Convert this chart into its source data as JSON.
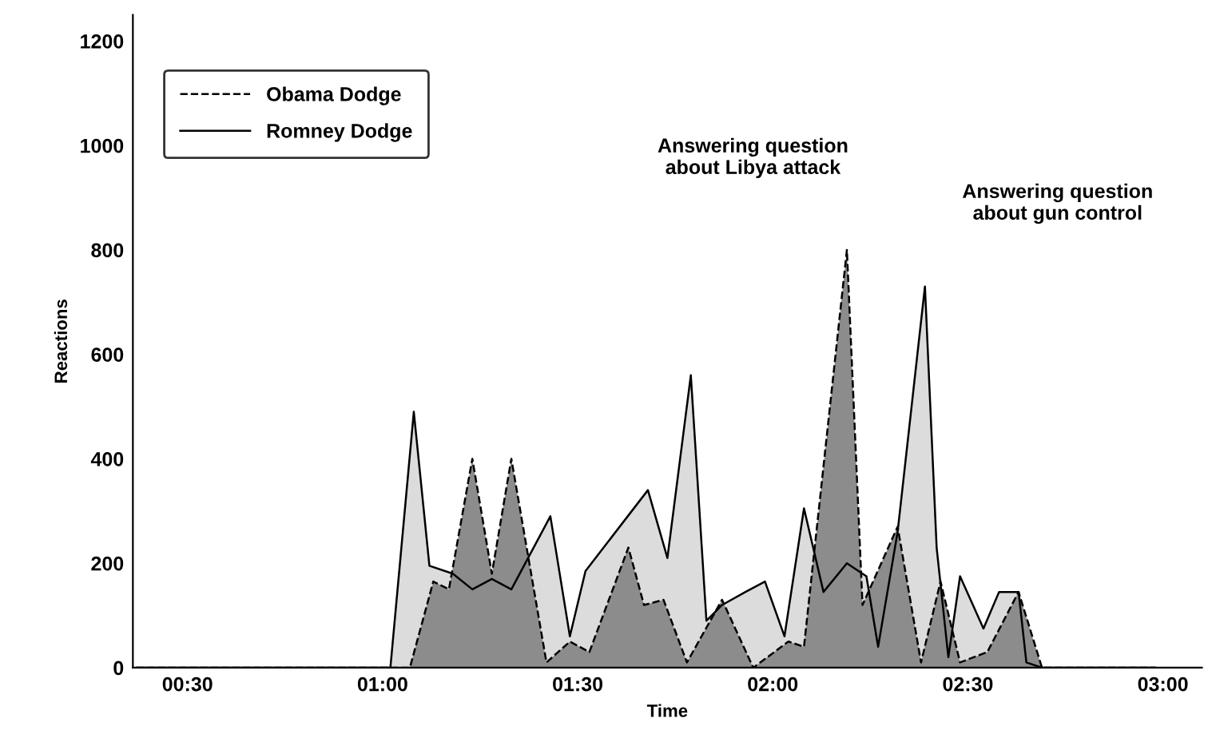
{
  "chart_data": {
    "type": "area",
    "xlabel": "Time",
    "ylabel": "Reactions",
    "xlim": [
      0.36,
      3.1
    ],
    "ylim": [
      0,
      1250
    ],
    "xticks": [
      {
        "value": 0.5,
        "label": "00:30"
      },
      {
        "value": 1.0,
        "label": "01:00"
      },
      {
        "value": 1.5,
        "label": "01:30"
      },
      {
        "value": 2.0,
        "label": "02:00"
      },
      {
        "value": 2.5,
        "label": "02:30"
      },
      {
        "value": 3.0,
        "label": "03:00"
      }
    ],
    "yticks": [
      0,
      200,
      400,
      600,
      800,
      1000,
      1200
    ],
    "grid": false,
    "legend": "top left",
    "series": [
      {
        "name": "Romney Dodge",
        "color": "#dcdcdc",
        "line_style": "solid",
        "x": [
          0.37,
          1.02,
          1.08,
          1.12,
          1.18,
          1.23,
          1.28,
          1.33,
          1.43,
          1.48,
          1.52,
          1.68,
          1.73,
          1.79,
          1.83,
          1.87,
          1.93,
          1.98,
          2.03,
          2.08,
          2.13,
          2.19,
          2.24,
          2.27,
          2.32,
          2.39,
          2.42,
          2.45,
          2.48,
          2.54,
          2.58,
          2.63,
          2.65,
          2.69,
          2.98
        ],
        "values": [
          0,
          0,
          490,
          195,
          180,
          150,
          170,
          150,
          290,
          60,
          185,
          340,
          210,
          560,
          90,
          120,
          145,
          165,
          60,
          305,
          145,
          200,
          175,
          40,
          260,
          730,
          230,
          20,
          175,
          75,
          145,
          145,
          10,
          0,
          0
        ]
      },
      {
        "name": "Obama Dodge",
        "color": "#8c8c8c",
        "line_style": "dashed",
        "x": [
          0.37,
          1.07,
          1.13,
          1.17,
          1.23,
          1.28,
          1.33,
          1.42,
          1.48,
          1.53,
          1.63,
          1.67,
          1.72,
          1.78,
          1.87,
          1.95,
          2.04,
          2.08,
          2.19,
          2.23,
          2.32,
          2.38,
          2.43,
          2.48,
          2.55,
          2.63,
          2.69,
          2.98
        ],
        "values": [
          0,
          0,
          165,
          150,
          400,
          180,
          400,
          10,
          50,
          30,
          230,
          120,
          130,
          10,
          130,
          0,
          50,
          40,
          800,
          120,
          270,
          10,
          165,
          10,
          30,
          145,
          0,
          0
        ]
      }
    ],
    "annotations": [
      "Answering question\nabout Libya attack",
      "Answering question\nabout gun control"
    ]
  }
}
